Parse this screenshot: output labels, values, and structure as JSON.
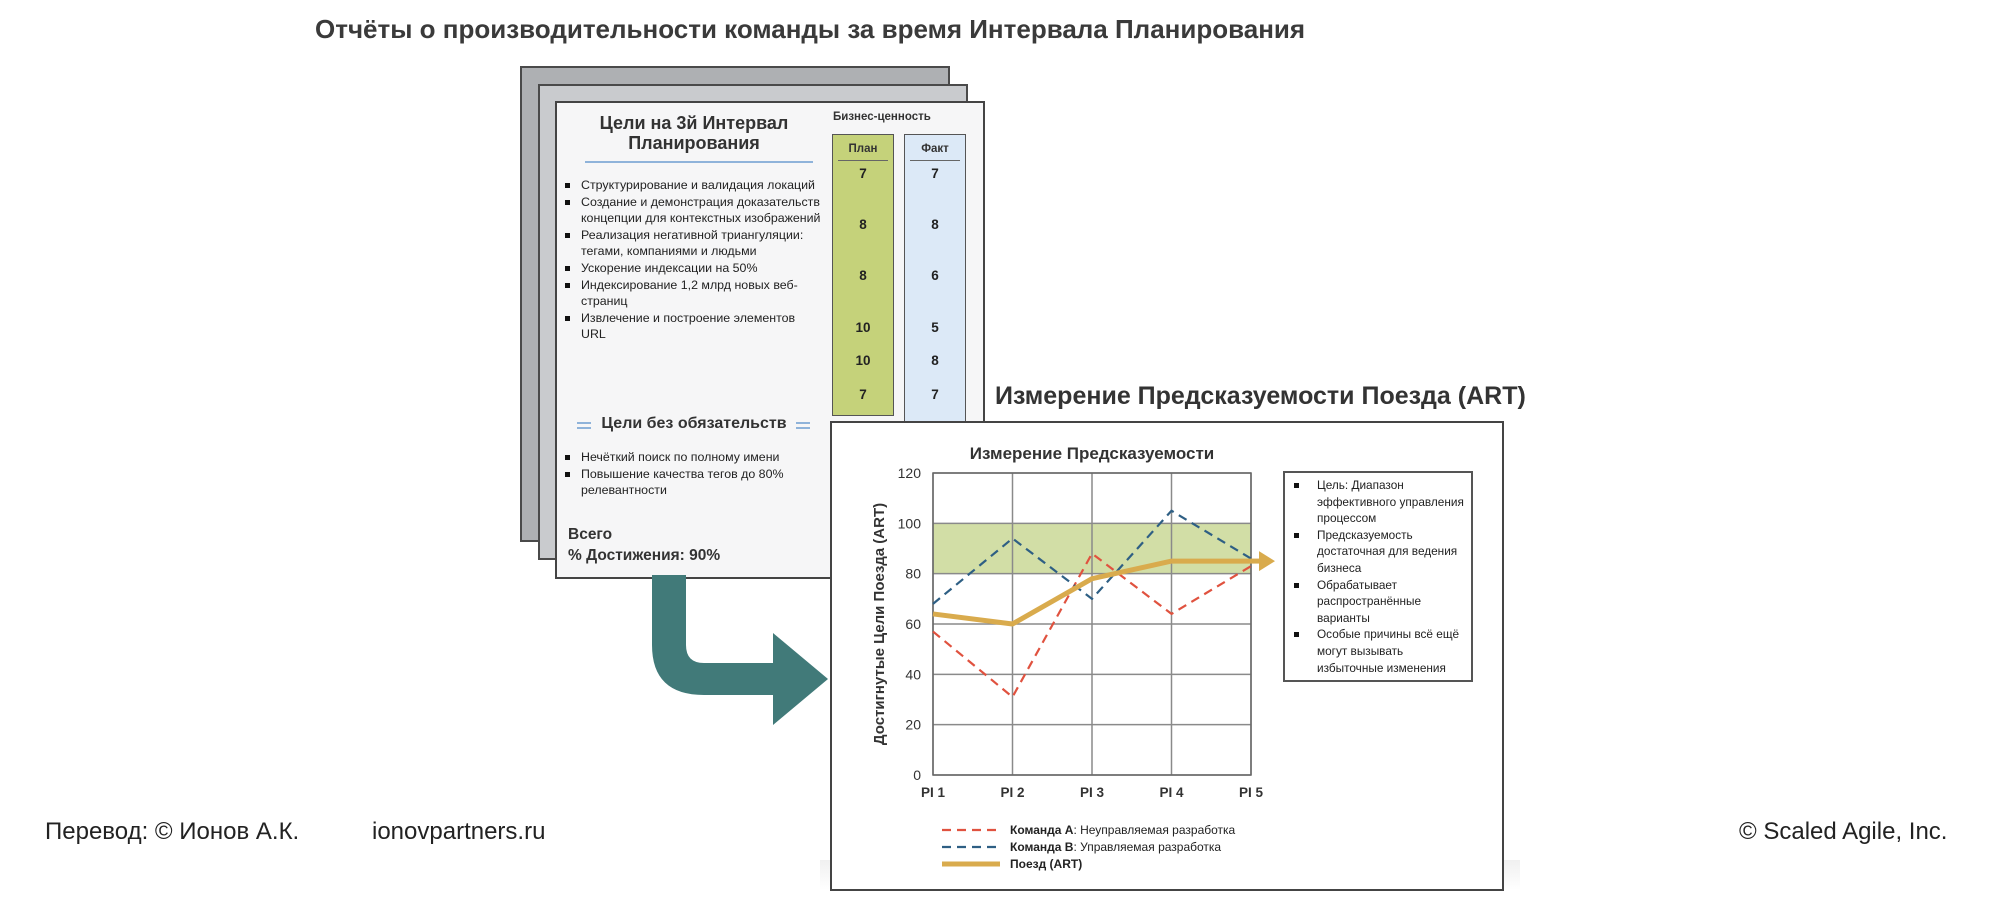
{
  "header": {
    "title": "Отчёты о производительности команды за время Интервала Планирования"
  },
  "report_card": {
    "goals_title": "Цели на 3й Интервал Планирования",
    "goals": [
      "Структурирование и валидация локаций",
      "Создание и демонстрация доказательств концепции для контекстных изображений",
      "Реализация негативной триангуляции: тегами, компаниями и людьми",
      "Ускорение индексации на 50%",
      "Индексирование 1,2 млрд новых веб-страниц",
      "Извлечение и построение элементов URL"
    ],
    "business_value_label": "Бизнес-ценность",
    "plan_label": "План",
    "fact_label": "Факт",
    "plan_values": [
      "7",
      "8",
      "8",
      "10",
      "10",
      "7"
    ],
    "fact_values": [
      "7",
      "8",
      "6",
      "5",
      "8",
      "7"
    ],
    "uncommitted_title": "Цели без обязательств",
    "uncommitted_goals": [
      "Нечёткий поиск по полному имени",
      "Повышение качества тегов до 80% релевантности"
    ],
    "total_label": "Всего",
    "achievement_label": "% Достижения: 90%"
  },
  "predictability": {
    "title": "Измерение Предсказуемости Поезда (ART)",
    "info": [
      "Цель: Диапазон эффективного управления процессом",
      "Предсказуемость достаточная для ведения бизнеса",
      "Обрабатывает распространённые варианты",
      "Особые причины всё ещё могут вызывать избыточные изменения"
    ]
  },
  "chart_data": {
    "type": "line",
    "title": "Измерение Предсказуемости",
    "ylabel": "Достигнутые Цели Поезда (ART)",
    "xlabel": "",
    "categories": [
      "PI 1",
      "PI 2",
      "PI 3",
      "PI 4",
      "PI 5"
    ],
    "yticks": [
      "0",
      "20",
      "40",
      "60",
      "80",
      "100",
      "120"
    ],
    "ylim": [
      0,
      120
    ],
    "target_band": [
      80,
      100
    ],
    "grid": true,
    "legend_position": "bottom",
    "series": [
      {
        "name": "Команда А",
        "description": ": Неуправляемая разработка",
        "values": [
          57,
          31,
          88,
          64,
          83
        ],
        "color": "#e0523f",
        "style": "dashed"
      },
      {
        "name": "Команда B",
        "description": ": Управляемая разработка",
        "values": [
          68,
          94,
          70,
          105,
          86
        ],
        "color": "#2e5f84",
        "style": "dashed"
      },
      {
        "name": "Поезд (ART)",
        "description": "",
        "values": [
          64,
          60,
          78,
          85,
          85
        ],
        "color": "#d9ab4d",
        "style": "solid"
      }
    ],
    "band_color": "#d2dea6",
    "arrow_color": "#d9ab4d"
  },
  "footer": {
    "translation": "Перевод: © Ионов А.К.",
    "site": "ionovpartners.ru",
    "copyright": "© Scaled Agile,  Inc."
  },
  "colors": {
    "flow_arrow": "#417a79"
  }
}
